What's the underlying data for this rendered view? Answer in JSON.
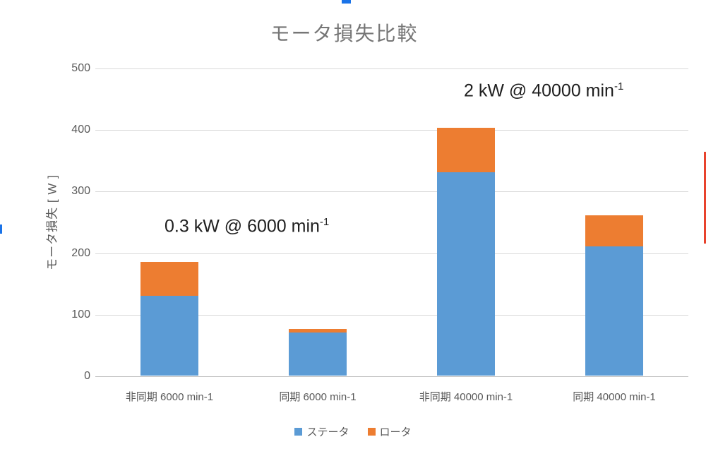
{
  "title": "モータ損失比較",
  "chart_data": {
    "type": "bar",
    "stacked": true,
    "title": "モータ損失比較",
    "xlabel": "",
    "ylabel": "モータ損失 [ W ]",
    "ylim": [
      0,
      500
    ],
    "yticks": [
      0,
      100,
      200,
      300,
      400,
      500
    ],
    "grid": true,
    "legend_position": "bottom",
    "categories": [
      "非同期 6000 min-1",
      "同期 6000 min-1",
      "非同期 40000 min-1",
      "同期 40000 min-1"
    ],
    "series": [
      {
        "name": "ステータ",
        "color": "#5b9bd5",
        "values": [
          130,
          70,
          330,
          210
        ]
      },
      {
        "name": "ロータ",
        "color": "#ed7d31",
        "values": [
          55,
          6,
          73,
          50
        ]
      }
    ],
    "totals": [
      185,
      76,
      403,
      260
    ],
    "annotations": [
      {
        "text": "0.3 kW @ 6000 min",
        "sup": "-1"
      },
      {
        "text": "2 kW @ 40000 min",
        "sup": "-1"
      }
    ]
  },
  "colors": {
    "stator": "#5b9bd5",
    "rotor": "#ed7d31",
    "gridline": "#d9d9d9",
    "axis_text": "#595959",
    "title_text": "#767676",
    "annotation_text": "#1f1f1f",
    "crop_mark_blue": "#1a73e8",
    "crop_mark_red": "#e8432d"
  }
}
